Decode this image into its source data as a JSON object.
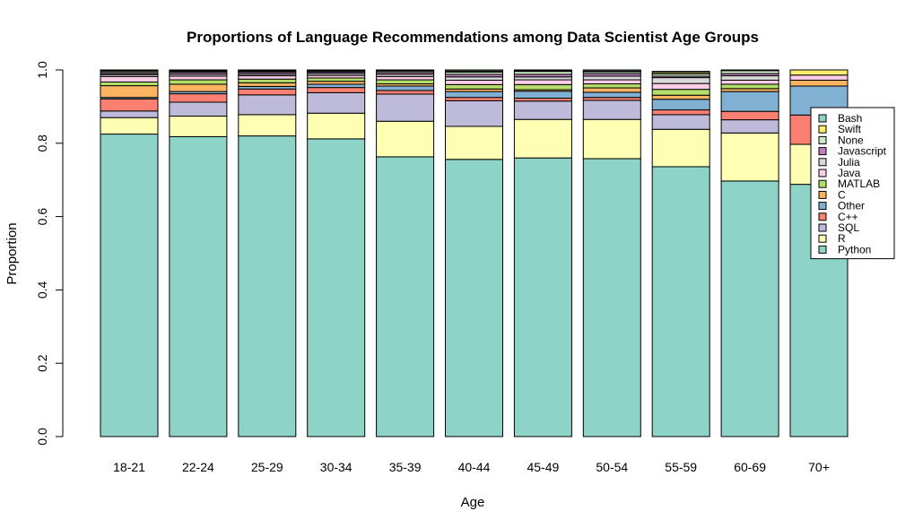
{
  "chart_data": {
    "type": "bar",
    "stacked": true,
    "title": "Proportions of Language Recommendations among Data Scientist Age Groups",
    "xlabel": "Age",
    "ylabel": "Proportion",
    "ylim": [
      0,
      1
    ],
    "yticks": [
      "0.0",
      "0.2",
      "0.4",
      "0.6",
      "0.8",
      "1.0"
    ],
    "categories": [
      "18-21",
      "22-24",
      "25-29",
      "30-34",
      "35-39",
      "40-44",
      "45-49",
      "50-54",
      "55-59",
      "60-69",
      "70+"
    ],
    "series": [
      {
        "name": "Python",
        "color": "#8DD3C7",
        "values": [
          0.825,
          0.818,
          0.82,
          0.812,
          0.763,
          0.756,
          0.76,
          0.758,
          0.736,
          0.697,
          0.688
        ]
      },
      {
        "name": "R",
        "color": "#FFFFB3",
        "values": [
          0.045,
          0.056,
          0.058,
          0.07,
          0.097,
          0.09,
          0.105,
          0.107,
          0.102,
          0.131,
          0.109
        ]
      },
      {
        "name": "SQL",
        "color": "#BEBADA",
        "values": [
          0.018,
          0.038,
          0.054,
          0.056,
          0.074,
          0.07,
          0.05,
          0.052,
          0.04,
          0.036,
          0.0
        ]
      },
      {
        "name": "C++",
        "color": "#FB8072",
        "values": [
          0.033,
          0.023,
          0.016,
          0.014,
          0.01,
          0.009,
          0.008,
          0.008,
          0.013,
          0.023,
          0.08
        ]
      },
      {
        "name": "Other",
        "color": "#80B1D3",
        "values": [
          0.004,
          0.006,
          0.007,
          0.009,
          0.012,
          0.016,
          0.019,
          0.014,
          0.029,
          0.054,
          0.079
        ]
      },
      {
        "name": "C",
        "color": "#FDB462",
        "values": [
          0.032,
          0.02,
          0.01,
          0.008,
          0.006,
          0.007,
          0.004,
          0.012,
          0.011,
          0.008,
          0.016
        ]
      },
      {
        "name": "MATLAB",
        "color": "#B3DE69",
        "values": [
          0.01,
          0.012,
          0.01,
          0.009,
          0.011,
          0.012,
          0.014,
          0.011,
          0.016,
          0.012,
          0.0
        ]
      },
      {
        "name": "Java",
        "color": "#FCCDE5",
        "values": [
          0.015,
          0.01,
          0.009,
          0.007,
          0.009,
          0.012,
          0.013,
          0.011,
          0.016,
          0.011,
          0.014
        ]
      },
      {
        "name": "Julia",
        "color": "#D9D9D9",
        "values": [
          0.005,
          0.005,
          0.004,
          0.005,
          0.006,
          0.009,
          0.008,
          0.01,
          0.016,
          0.012,
          0.0
        ]
      },
      {
        "name": "Javascript",
        "color": "#BC80BD",
        "values": [
          0.004,
          0.005,
          0.005,
          0.004,
          0.005,
          0.007,
          0.007,
          0.007,
          0.004,
          0.006,
          0.0
        ]
      },
      {
        "name": "None",
        "color": "#CCEBC5",
        "values": [
          0.004,
          0.003,
          0.003,
          0.003,
          0.004,
          0.006,
          0.008,
          0.005,
          0.006,
          0.008,
          0.0
        ]
      },
      {
        "name": "Swift",
        "color": "#FFED6F",
        "values": [
          0.003,
          0.002,
          0.002,
          0.002,
          0.002,
          0.003,
          0.002,
          0.002,
          0.004,
          0.002,
          0.014
        ]
      },
      {
        "name": "Bash",
        "color": "#8DD3C7",
        "values": [
          0.002,
          0.002,
          0.002,
          0.001,
          0.001,
          0.003,
          0.002,
          0.003,
          0.003,
          0.0,
          0.0
        ]
      }
    ],
    "legend": {
      "position": "right",
      "entries": [
        "Bash",
        "Swift",
        "None",
        "Javascript",
        "Julia",
        "Java",
        "MATLAB",
        "C",
        "Other",
        "C++",
        "SQL",
        "R",
        "Python"
      ]
    },
    "grid": false
  }
}
